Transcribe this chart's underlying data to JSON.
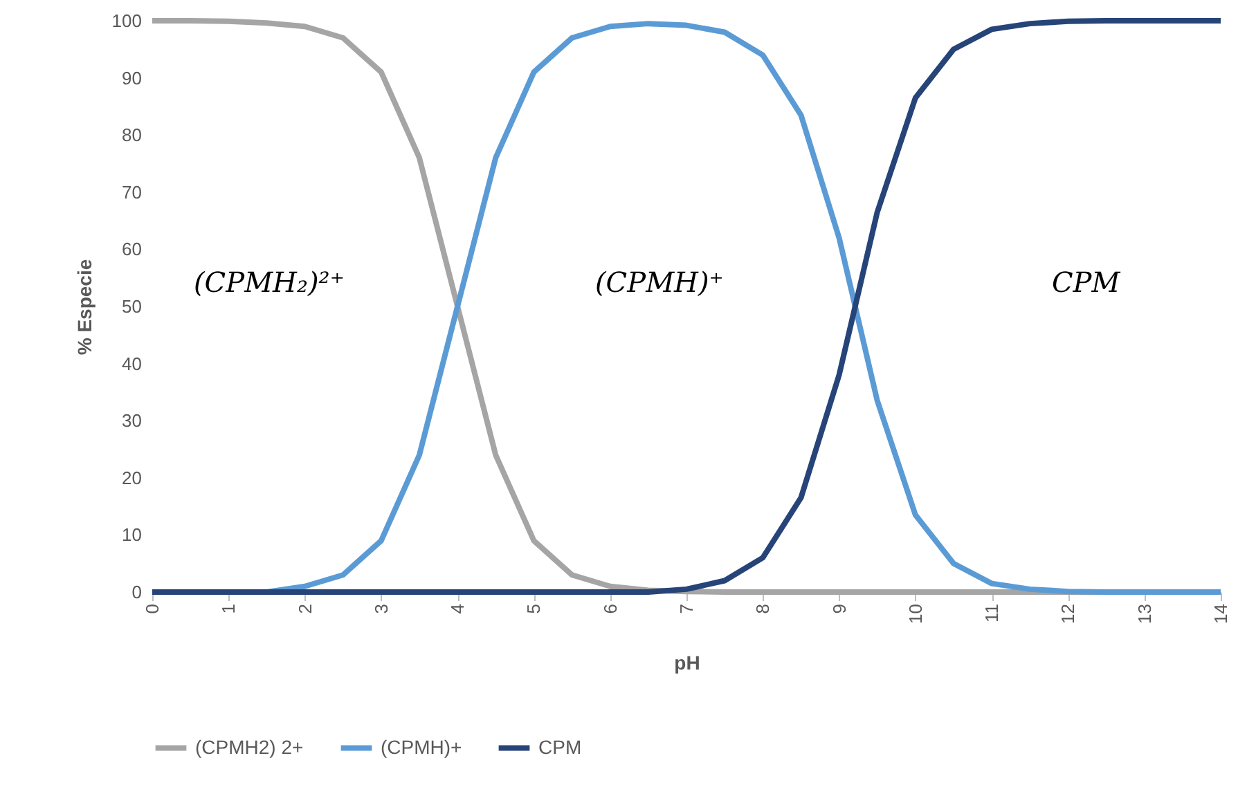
{
  "chart_data": {
    "type": "line",
    "xlabel": "pH",
    "ylabel": "% Especie",
    "x": [
      0,
      0.5,
      1,
      1.5,
      2,
      2.5,
      3,
      3.5,
      4,
      4.5,
      5,
      5.5,
      6,
      6.5,
      7,
      7.5,
      8,
      8.5,
      9,
      9.5,
      10,
      10.5,
      11,
      11.5,
      12,
      12.5,
      13,
      13.5,
      14
    ],
    "series": [
      {
        "name": "(CPMH2) 2+",
        "color": "#a5a5a5",
        "values": [
          100,
          100,
          99.9,
          99.6,
          99,
          97,
          91,
          76,
          50,
          24,
          9,
          3,
          1,
          0.3,
          0.1,
          0,
          0,
          0,
          0,
          0,
          0,
          0,
          0,
          0,
          0,
          0,
          0,
          0,
          0
        ]
      },
      {
        "name": "(CPMH)+",
        "color": "#5b9bd5",
        "values": [
          null,
          null,
          0,
          0,
          1,
          3,
          9,
          24,
          50,
          76,
          91,
          97,
          99,
          99.5,
          99.2,
          98,
          94,
          83.5,
          62,
          33.5,
          13.5,
          5,
          1.5,
          0.5,
          0.1,
          0,
          0,
          0,
          0
        ]
      },
      {
        "name": "CPM",
        "color": "#264478",
        "values": [
          0,
          0,
          0,
          0,
          0,
          0,
          0,
          0,
          0,
          0,
          0,
          0,
          0,
          0,
          0.5,
          2,
          6,
          16.5,
          38,
          66.5,
          86.5,
          95,
          98.5,
          99.5,
          99.9,
          100,
          100,
          100,
          100
        ]
      }
    ],
    "xlim": [
      0,
      14
    ],
    "xticks": [
      0,
      1,
      2,
      3,
      4,
      5,
      6,
      7,
      8,
      9,
      10,
      11,
      12,
      13,
      14
    ],
    "ylim": [
      0,
      100
    ],
    "yticks": [
      0,
      10,
      20,
      30,
      40,
      50,
      60,
      70,
      80,
      90,
      100
    ],
    "annotations": [
      "(CPMH₂)²⁺",
      "(CPMH)⁺",
      "CPM"
    ],
    "grid": false,
    "legend": "bottom",
    "marker": "none",
    "line_style": "solid"
  }
}
